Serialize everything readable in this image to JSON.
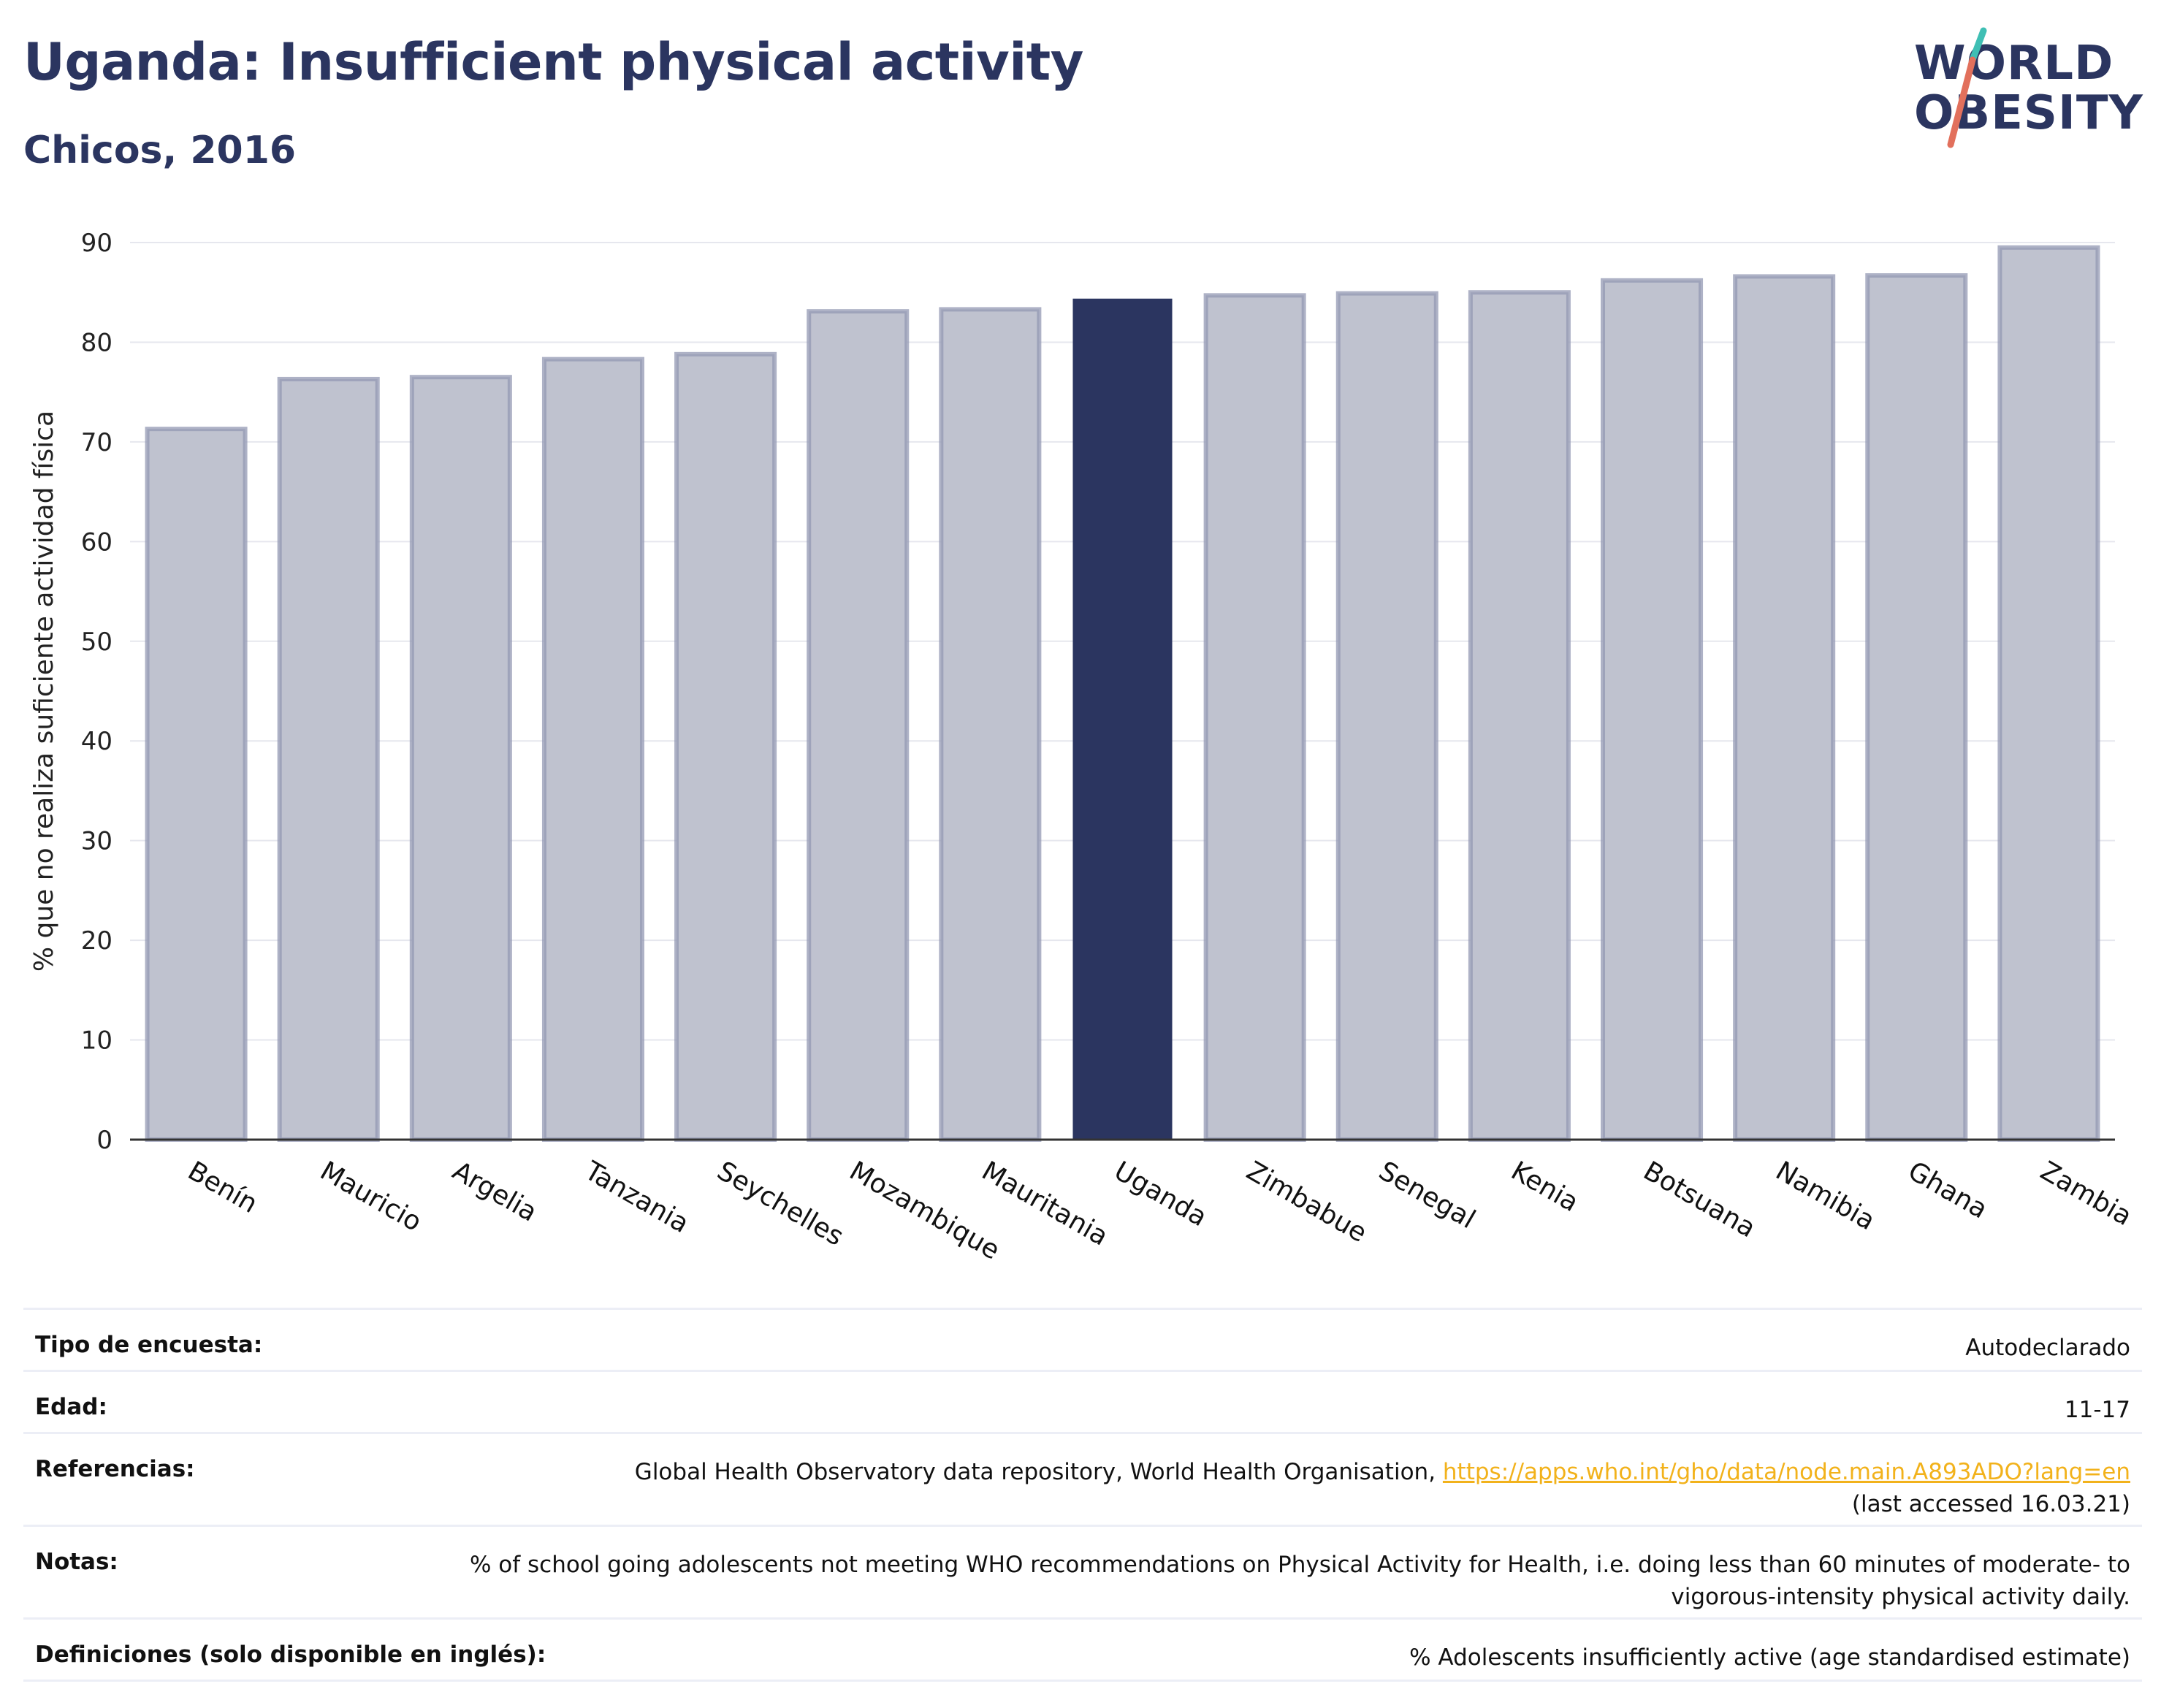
{
  "header": {
    "title": "Uganda: Insufficient physical activity",
    "subtitle": "Chicos, 2016"
  },
  "logo": {
    "line1": "WORLD",
    "line2": "OBESITY"
  },
  "colors": {
    "highlight_bar": "#2b3560",
    "other_bar_fill": "#bfc2cf",
    "other_bar_stroke": "#9398b3",
    "grid": "#e6e7ee",
    "title": "#2b3560",
    "link": "#f2b21b"
  },
  "chart_data": {
    "type": "bar",
    "title": "Uganda: Insufficient physical activity",
    "subtitle": "Chicos, 2016",
    "xlabel": "",
    "ylabel": "% que no realiza suficiente actividad física",
    "ylim": [
      0,
      90
    ],
    "yticks": [
      0,
      10,
      20,
      30,
      40,
      50,
      60,
      70,
      80,
      90
    ],
    "grid": true,
    "highlight": "Uganda",
    "categories": [
      "Benín",
      "Mauricio",
      "Argelia",
      "Tanzania",
      "Seychelles",
      "Mozambique",
      "Mauritania",
      "Uganda",
      "Zimbabue",
      "Senegal",
      "Kenia",
      "Botsuana",
      "Namibia",
      "Ghana",
      "Zambia"
    ],
    "values": [
      71.3,
      76.3,
      76.5,
      78.3,
      78.8,
      83.1,
      83.3,
      84.3,
      84.7,
      84.9,
      85.0,
      86.2,
      86.6,
      86.7,
      89.5
    ]
  },
  "info": {
    "rows": [
      {
        "key": "Tipo de encuesta:",
        "value": "Autodeclarado"
      },
      {
        "key": "Edad:",
        "value": "11-17"
      },
      {
        "key": "Referencias:",
        "value_prefix": "Global Health Observatory data repository, World Health Organisation, ",
        "link": "https://apps.who.int/gho/data/node.main.A893ADO?lang=en",
        "value_suffix": "(last accessed 16.03.21)"
      },
      {
        "key": "Notas:",
        "value": "% of school going adolescents not meeting WHO recommendations on Physical Activity for Health, i.e. doing less than 60 minutes of moderate- to vigorous-intensity physical activity daily."
      },
      {
        "key": "Definiciones (solo disponible en inglés):",
        "value": "% Adolescents insufficiently active (age standardised estimate)"
      }
    ]
  }
}
